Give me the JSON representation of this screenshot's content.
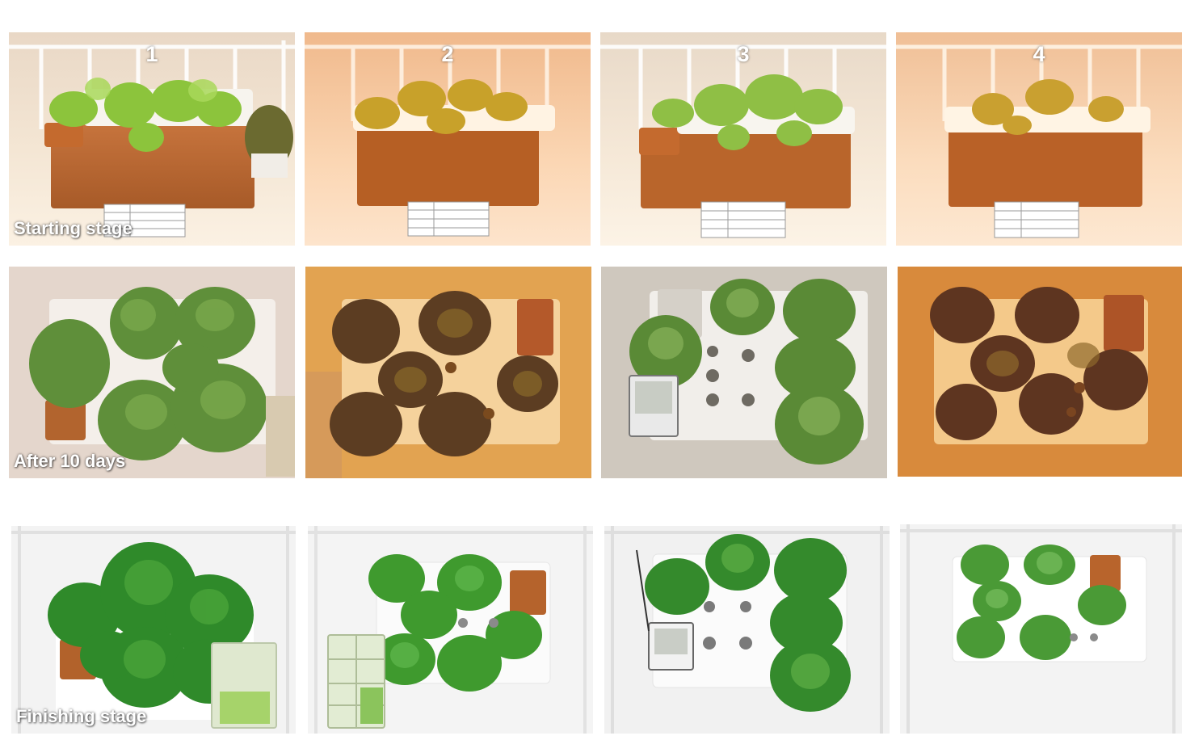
{
  "columns": [
    {
      "label": "1"
    },
    {
      "label": "2"
    },
    {
      "label": "3"
    },
    {
      "label": "4"
    }
  ],
  "rows": [
    {
      "label": "Starting stage"
    },
    {
      "label": "After 10 days"
    },
    {
      "label": "Finishing stage"
    }
  ]
}
